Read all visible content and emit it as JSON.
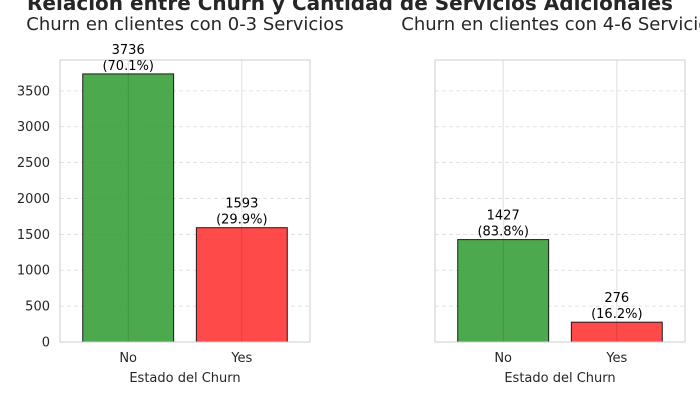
{
  "figure": {
    "suptitle": "Relación entre Churn y Cantidad de Servicios Adicionales"
  },
  "colors": {
    "no": "#2e9a2e",
    "yes": "#ff2a2a",
    "bar_edge": "#1a1a1a",
    "grid": "#d9d9d9",
    "frame": "#cccccc"
  },
  "chart_data": [
    {
      "type": "bar",
      "title": "Churn en clientes con 0-3 Servicios",
      "xlabel": "Estado del Churn",
      "ylabel": "",
      "categories": [
        "No",
        "Yes"
      ],
      "values": [
        3736,
        1593
      ],
      "value_labels": [
        "3736",
        "1593"
      ],
      "pct_labels": [
        "(70.1%)",
        "(29.9%)"
      ],
      "ylim": [
        0,
        3930
      ],
      "yticks": [
        0,
        500,
        1000,
        1500,
        2000,
        2500,
        3000,
        3500
      ],
      "ytick_labels": [
        "0",
        "500",
        "1000",
        "1500",
        "2000",
        "2500",
        "3000",
        "3500"
      ],
      "grid": true
    },
    {
      "type": "bar",
      "title": "Churn en clientes con 4-6 Servicios",
      "xlabel": "Estado del Churn",
      "ylabel": "",
      "categories": [
        "No",
        "Yes"
      ],
      "values": [
        1427,
        276
      ],
      "value_labels": [
        "1427",
        "276"
      ],
      "pct_labels": [
        "(83.8%)",
        "(16.2%)"
      ],
      "ylim": [
        0,
        3930
      ],
      "yticks": [
        0,
        500,
        1000,
        1500,
        2000,
        2500,
        3000,
        3500
      ],
      "ytick_labels": [],
      "grid": true
    }
  ]
}
